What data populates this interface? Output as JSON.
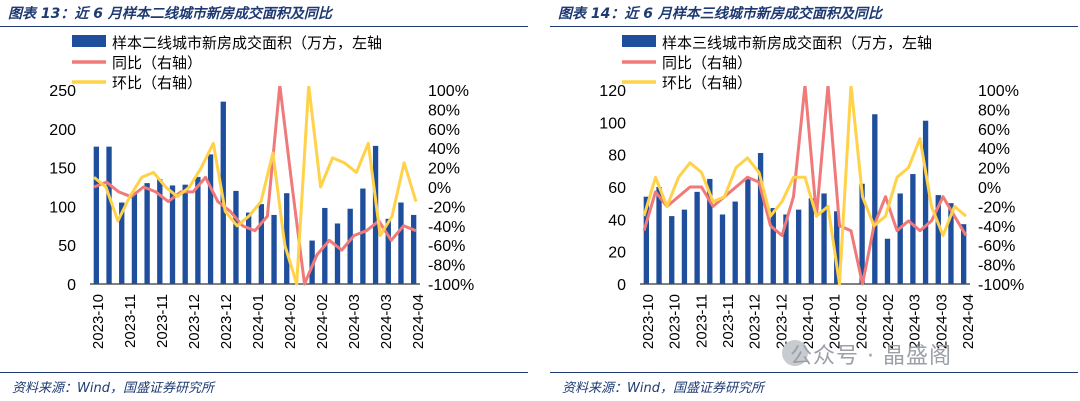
{
  "panels": [
    {
      "title": "图表 13：近 6 月样本二线城市新房成交面积及同比",
      "source": "资料来源：Wind，国盛证券研究所",
      "chart_data": {
        "type": "bar",
        "left_axis": {
          "ylim": [
            0,
            250
          ],
          "ticks": [
            0,
            50,
            100,
            150,
            200,
            250
          ]
        },
        "right_axis": {
          "ylim": [
            -100,
            100
          ],
          "ticks": [
            "-100%",
            "-80%",
            "-60%",
            "-40%",
            "-20%",
            "0%",
            "20%",
            "40%",
            "60%",
            "80%",
            "100%"
          ]
        },
        "x_tick_labels": [
          "2023-10",
          "2023-11",
          "2023-11",
          "2023-12",
          "2023-12",
          "2024-01",
          "2024-02",
          "2024-02",
          "2024-03",
          "2024-03",
          "2024-04"
        ],
        "legend": [
          "样本二线城市新房成交面积（万方，左轴",
          "同比（右轴）",
          "环比（右轴）"
        ],
        "legend_position": "top-left",
        "colors": {
          "bar": "#1f4e9c",
          "yoy": "#f07a7a",
          "mom": "#ffd24a"
        },
        "series": [
          {
            "name": "样本二线城市新房成交面积（万方，左轴",
            "axis": "left",
            "values": [
              177,
              177,
              105,
              117,
              130,
              135,
              127,
              128,
              138,
              167,
              235,
              120,
              92,
              103,
              89,
              117,
              0,
              56,
              98,
              78,
              97,
              123,
              178,
              84,
              105,
              89
            ]
          },
          {
            "name": "同比（右轴）",
            "axis": "right",
            "values": [
              0,
              5,
              -5,
              -10,
              0,
              -5,
              -15,
              -5,
              -5,
              10,
              -15,
              -25,
              -40,
              -45,
              -30,
              105,
              0,
              -100,
              -70,
              -55,
              -65,
              -50,
              -45,
              -35,
              -55,
              -40,
              -45
            ]
          },
          {
            "name": "环比（右轴）",
            "axis": "right",
            "values": [
              10,
              0,
              -35,
              -10,
              10,
              15,
              0,
              -10,
              0,
              20,
              45,
              -25,
              -40,
              -30,
              -15,
              35,
              -60,
              -100,
              105,
              0,
              30,
              25,
              15,
              45,
              -50,
              -30,
              25,
              -15
            ]
          }
        ]
      }
    },
    {
      "title": "图表 14：近 6 月样本三线城市新房成交面积及同比",
      "source": "资料来源：Wind，国盛证券研究所",
      "chart_data": {
        "type": "bar",
        "left_axis": {
          "ylim": [
            0,
            120
          ],
          "ticks": [
            0,
            20,
            40,
            60,
            80,
            100,
            120
          ]
        },
        "right_axis": {
          "ylim": [
            -100,
            100
          ],
          "ticks": [
            "-100%",
            "-80%",
            "-60%",
            "-40%",
            "-20%",
            "0%",
            "20%",
            "40%",
            "60%",
            "80%",
            "100%"
          ]
        },
        "x_tick_labels": [
          "2023-10",
          "2023-10",
          "2023-11",
          "2023-11",
          "2023-12",
          "2023-12",
          "2024-01",
          "2024-01",
          "2024-02",
          "2024-02",
          "2024-03",
          "2024-03",
          "2024-04"
        ],
        "legend": [
          "样本三线城市新房成交面积（万方，左轴",
          "同比（右轴）",
          "环比（右轴）"
        ],
        "legend_position": "top-left",
        "colors": {
          "bar": "#1f4e9c",
          "yoy": "#f07a7a",
          "mom": "#ffd24a"
        },
        "series": [
          {
            "name": "样本三线城市新房成交面积（万方，左轴",
            "axis": "left",
            "values": [
              54,
              60,
              42,
              46,
              57,
              65,
              43,
              51,
              66,
              81,
              47,
              43,
              46,
              53,
              56,
              45,
              0,
              62,
              105,
              28,
              56,
              68,
              101,
              55,
              50,
              37
            ]
          },
          {
            "name": "同比（右轴）",
            "axis": "right",
            "values": [
              -45,
              -5,
              -20,
              -10,
              0,
              0,
              -20,
              -10,
              0,
              10,
              5,
              -40,
              -50,
              -10,
              105,
              -30,
              105,
              -40,
              -45,
              -100,
              -40,
              -10,
              -45,
              -35,
              -45,
              -35,
              -10,
              -30,
              -50
            ]
          },
          {
            "name": "环比（右轴）",
            "axis": "right",
            "values": [
              -30,
              10,
              -20,
              10,
              25,
              15,
              -15,
              -10,
              20,
              30,
              15,
              -30,
              -15,
              10,
              10,
              -30,
              -20,
              -100,
              105,
              -10,
              -40,
              -30,
              10,
              20,
              50,
              -20,
              -50,
              -20,
              -30
            ]
          }
        ]
      }
    }
  ],
  "watermark": "公众号 · 晶盛阁"
}
